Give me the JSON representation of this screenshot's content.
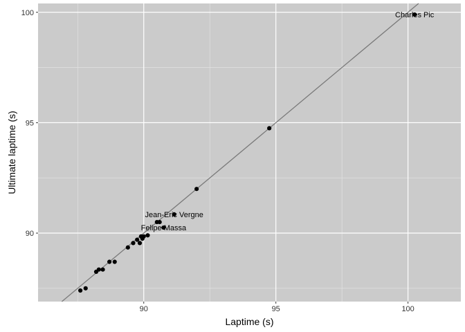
{
  "chart_data": {
    "type": "scatter",
    "title": "",
    "xlabel": "Laptime (s)",
    "ylabel": "Ultimate laptime (s)",
    "xlim": [
      86.0,
      102.0
    ],
    "ylim": [
      86.9,
      100.4
    ],
    "x_ticks": [
      90,
      95,
      100
    ],
    "y_ticks": [
      90,
      95,
      100
    ],
    "grid": true,
    "background": "#cbcbcb",
    "point_color": "#000000",
    "line_color": "#7a7a7a",
    "reference_line": {
      "type": "identity",
      "slope": 1,
      "intercept": 0
    },
    "points": [
      {
        "x": 87.6,
        "y": 87.4
      },
      {
        "x": 87.8,
        "y": 87.5
      },
      {
        "x": 88.2,
        "y": 88.25
      },
      {
        "x": 88.3,
        "y": 88.35
      },
      {
        "x": 88.45,
        "y": 88.35
      },
      {
        "x": 88.7,
        "y": 88.7
      },
      {
        "x": 88.9,
        "y": 88.7
      },
      {
        "x": 89.4,
        "y": 89.35
      },
      {
        "x": 89.6,
        "y": 89.55
      },
      {
        "x": 89.75,
        "y": 89.7
      },
      {
        "x": 89.85,
        "y": 89.55
      },
      {
        "x": 89.9,
        "y": 89.85
      },
      {
        "x": 89.95,
        "y": 89.75
      },
      {
        "x": 90.0,
        "y": 89.85
      },
      {
        "x": 90.15,
        "y": 89.9
      },
      {
        "x": 90.5,
        "y": 90.5
      },
      {
        "x": 90.6,
        "y": 90.5
      },
      {
        "x": 90.75,
        "y": 90.25
      },
      {
        "x": 91.15,
        "y": 90.85
      },
      {
        "x": 92.0,
        "y": 92.0
      },
      {
        "x": 94.75,
        "y": 94.75
      },
      {
        "x": 100.25,
        "y": 99.9
      }
    ],
    "annotations": [
      {
        "text": "Charles Pic",
        "x": 100.25,
        "y": 99.9
      },
      {
        "text": "Jean-Eric Vergne",
        "x": 91.15,
        "y": 90.85
      },
      {
        "text": "Felipe Massa",
        "x": 90.75,
        "y": 90.25
      }
    ]
  }
}
